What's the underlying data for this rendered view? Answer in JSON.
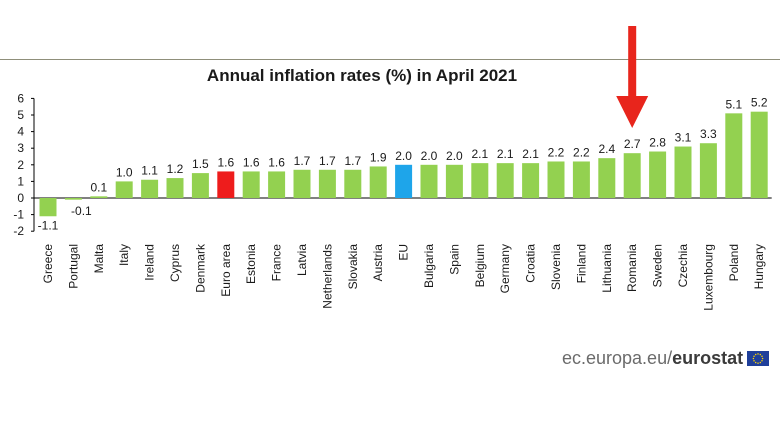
{
  "chart_data": {
    "type": "bar",
    "title": "Annual inflation rates (%) in April 2021",
    "xlabel": "",
    "ylabel": "",
    "ylim": [
      -2,
      6
    ],
    "yticks": [
      -2,
      -1,
      0,
      1,
      2,
      3,
      4,
      5,
      6
    ],
    "grid": false,
    "legend": "none",
    "categories": [
      "Greece",
      "Portugal",
      "Malta",
      "Italy",
      "Ireland",
      "Cyprus",
      "Denmark",
      "Euro area",
      "Estonia",
      "France",
      "Latvia",
      "Netherlands",
      "Slovakia",
      "Austria",
      "EU",
      "Bulgaria",
      "Spain",
      "Belgium",
      "Germany",
      "Croatia",
      "Slovenia",
      "Finland",
      "Lithuania",
      "Romania",
      "Sweden",
      "Czechia",
      "Luxembourg",
      "Poland",
      "Hungary"
    ],
    "values": [
      -1.1,
      -0.1,
      0.1,
      1.0,
      1.1,
      1.2,
      1.5,
      1.6,
      1.6,
      1.6,
      1.7,
      1.7,
      1.7,
      1.9,
      2.0,
      2.0,
      2.0,
      2.1,
      2.1,
      2.1,
      2.2,
      2.2,
      2.4,
      2.7,
      2.8,
      3.1,
      3.3,
      5.1,
      5.2
    ],
    "value_labels": [
      "-1.1",
      "-0.1",
      "0.1",
      "1.0",
      "1.1",
      "1.2",
      "1.5",
      "1.6",
      "1.6",
      "1.6",
      "1.7",
      "1.7",
      "1.7",
      "1.9",
      "2.0",
      "2.0",
      "2.0",
      "2.1",
      "2.1",
      "2.1",
      "2.2",
      "2.2",
      "2.4",
      "2.7",
      "2.8",
      "3.1",
      "3.3",
      "5.1",
      "5.2"
    ],
    "colors": {
      "default": "#93d150",
      "Euro area": "#ee1c1c",
      "EU": "#1ea5ea",
      "axis": "#000000"
    },
    "annotation": {
      "type": "arrow",
      "target": "Romania",
      "color": "#e8251c"
    }
  },
  "source": {
    "domain": "ec.europa.eu/",
    "brand": "eurostat",
    "flag_icon": "eu-flag-icon"
  }
}
